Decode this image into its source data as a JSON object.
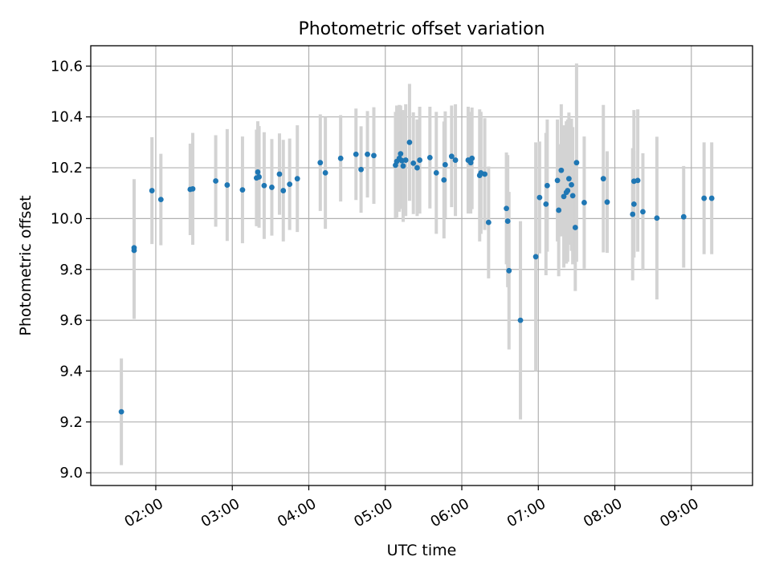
{
  "chart_data": {
    "type": "scatter",
    "title": "Photometric offset variation",
    "xlabel": "UTC time",
    "ylabel": "Photometric offset",
    "xlim": [
      "01:09",
      "09:48"
    ],
    "ylim": [
      8.95,
      10.68
    ],
    "x_ticks": [
      "02:00",
      "03:00",
      "04:00",
      "05:00",
      "06:00",
      "07:00",
      "08:00",
      "09:00"
    ],
    "y_ticks": [
      9.0,
      9.2,
      9.4,
      9.6,
      9.8,
      10.0,
      10.2,
      10.4,
      10.6
    ],
    "y_tick_labels": [
      "9.0",
      "9.2",
      "9.4",
      "9.6",
      "9.8",
      "10.0",
      "10.2",
      "10.4",
      "10.6"
    ],
    "grid": true,
    "colors": {
      "points": "#1f77b4",
      "errorbars": "#d3d3d3",
      "grid": "#b0b0b0",
      "axes": "#000000"
    },
    "series": [
      {
        "x": [
          "01:33",
          "01:43",
          "01:43",
          "01:57",
          "02:04",
          "02:27",
          "02:29",
          "02:47",
          "02:56",
          "03:08",
          "03:19",
          "03:20",
          "03:21",
          "03:25",
          "03:31",
          "03:37",
          "03:40",
          "03:45",
          "03:51",
          "04:09",
          "04:13",
          "04:25",
          "04:37",
          "04:41",
          "04:46",
          "04:51",
          "05:08",
          "05:09",
          "05:11",
          "05:12",
          "05:13",
          "05:14",
          "05:16",
          "05:19",
          "05:22",
          "05:25",
          "05:27",
          "05:35",
          "05:40",
          "05:46",
          "05:47",
          "05:52",
          "05:55",
          "06:05",
          "06:07",
          "06:08",
          "06:14",
          "06:15",
          "06:18",
          "06:21",
          "06:35",
          "06:36",
          "06:37",
          "06:46",
          "06:58",
          "07:01",
          "07:06",
          "07:07",
          "07:15",
          "07:16",
          "07:18",
          "07:20",
          "07:22",
          "07:23",
          "07:24",
          "07:26",
          "07:27",
          "07:29",
          "07:30",
          "07:36",
          "07:51",
          "07:54",
          "08:14",
          "08:15",
          "08:15",
          "08:18",
          "08:22",
          "08:33",
          "08:54",
          "09:10",
          "09:16"
        ],
        "y": [
          9.24,
          9.875,
          9.885,
          10.11,
          10.075,
          10.115,
          10.117,
          10.148,
          10.132,
          10.113,
          10.16,
          10.183,
          10.164,
          10.13,
          10.123,
          10.175,
          10.11,
          10.135,
          10.157,
          10.22,
          10.18,
          10.237,
          10.253,
          10.193,
          10.253,
          10.248,
          10.21,
          10.225,
          10.237,
          10.255,
          10.228,
          10.207,
          10.23,
          10.3,
          10.218,
          10.2,
          10.23,
          10.24,
          10.18,
          10.152,
          10.212,
          10.245,
          10.23,
          10.23,
          10.22,
          10.237,
          10.17,
          10.18,
          10.175,
          9.985,
          10.04,
          9.99,
          9.795,
          9.6,
          9.85,
          10.083,
          10.057,
          10.13,
          10.15,
          10.033,
          10.19,
          10.087,
          10.103,
          10.11,
          10.157,
          10.133,
          10.09,
          9.965,
          10.22,
          10.063,
          10.157,
          10.065,
          10.017,
          10.057,
          10.147,
          10.15,
          10.027,
          10.002,
          10.007,
          10.08,
          10.08
        ],
        "yerr": [
          0.21,
          0.27,
          0.27,
          0.21,
          0.18,
          0.18,
          0.22,
          0.18,
          0.22,
          0.21,
          0.19,
          0.2,
          0.2,
          0.21,
          0.19,
          0.16,
          0.2,
          0.18,
          0.21,
          0.19,
          0.22,
          0.17,
          0.18,
          0.17,
          0.17,
          0.19,
          0.21,
          0.22,
          0.21,
          0.19,
          0.19,
          0.22,
          0.22,
          0.23,
          0.2,
          0.19,
          0.21,
          0.2,
          0.24,
          0.23,
          0.21,
          0.2,
          0.22,
          0.21,
          0.2,
          0.2,
          0.26,
          0.24,
          0.22,
          0.22,
          0.22,
          0.26,
          0.31,
          0.39,
          0.45,
          0.22,
          0.28,
          0.26,
          0.24,
          0.26,
          0.26,
          0.28,
          0.28,
          0.28,
          0.26,
          0.26,
          0.27,
          0.25,
          0.39,
          0.26,
          0.29,
          0.2,
          0.26,
          0.21,
          0.28,
          0.28,
          0.23,
          0.32,
          0.2,
          0.22,
          0.22
        ]
      }
    ]
  }
}
